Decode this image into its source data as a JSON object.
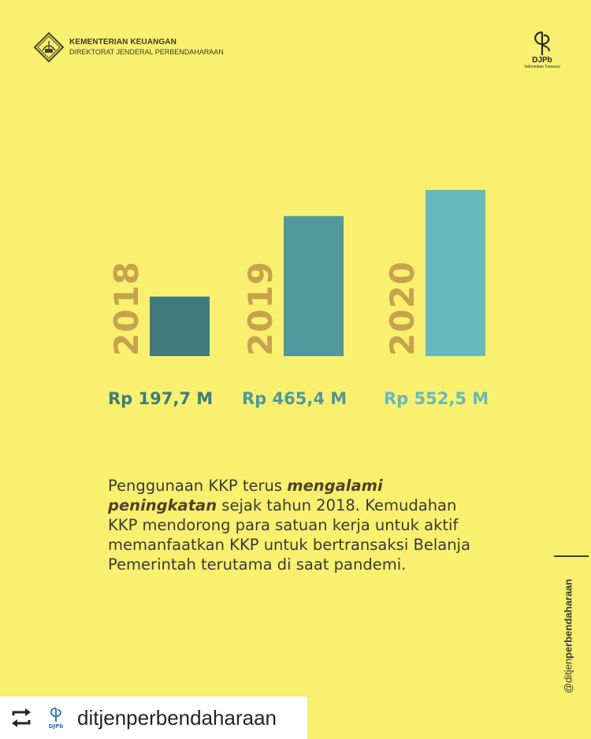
{
  "header": {
    "ministry": "KEMENTERIAN KEUANGAN",
    "directorate": "DIREKTORAT JENDERAL PERBENDAHARAAN",
    "brand_logo_text": "DJPb",
    "brand_logo_sub": "Indonesian Treasury"
  },
  "chart_data": {
    "type": "bar",
    "title": "",
    "categories": [
      "2018",
      "2019",
      "2020"
    ],
    "values": [
      197.7,
      465.4,
      552.5
    ],
    "value_labels": [
      "Rp 197,7 M",
      "Rp 465,4 M",
      "Rp 552,5 M"
    ],
    "unit": "Rp M",
    "colors": [
      "#3f7b7d",
      "#52979b",
      "#66babc"
    ],
    "year_label_color": "#c9a24e",
    "grid": false,
    "legend": "none"
  },
  "description": {
    "before": "Penggunaan KKP terus ",
    "emphasis": "mengalami peningkatan",
    "after": " sejak tahun 2018. Kemudahan KKP mendorong para satuan kerja untuk aktif memanfaatkan KKP untuk bertransaksi Belanja Pemerintah terutama di saat pandemi."
  },
  "side": {
    "handle_prefix": "@ditjen",
    "handle_bold": "perbendaharaan"
  },
  "repost": {
    "handle": "ditjenperbendaharaan",
    "avatar_text": "DJPb"
  },
  "colors": {
    "background": "#f8f06e",
    "text": "#3a3a3a"
  }
}
